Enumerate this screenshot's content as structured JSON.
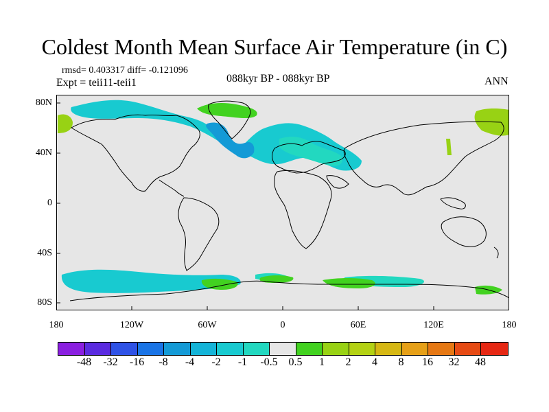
{
  "title": "Coldest Month Mean Surface Air Temperature (in C)",
  "stats": "rmsd= 0.403317 diff= -0.121096",
  "experiment": "Expt = teii11-teii1",
  "period": "088kyr BP - 088kyr BP",
  "season": "ANN",
  "lat_labels": [
    "80N",
    "40N",
    "0",
    "40S",
    "80S"
  ],
  "lon_labels": [
    "180",
    "120W",
    "60W",
    "0",
    "60E",
    "120E",
    "180"
  ],
  "colorbar": {
    "labels": [
      "-48",
      "-32",
      "-16",
      "-8",
      "-4",
      "-2",
      "-1",
      "-0.5",
      "0.5",
      "1",
      "2",
      "4",
      "8",
      "16",
      "32",
      "48"
    ],
    "colors": [
      "#8a1fe0",
      "#5a2be0",
      "#2f52e6",
      "#1a74e6",
      "#149ad6",
      "#14b4d8",
      "#18cad0",
      "#22d8c0",
      "#e6e6e6",
      "#42d220",
      "#98d214",
      "#b4d214",
      "#d6b814",
      "#e6a018",
      "#e67814",
      "#e64a14",
      "#e62814"
    ]
  },
  "colors": {
    "background": "#e6e6e6",
    "cool_light": "#22d8c0",
    "cool_mid": "#18cad0",
    "cool_strong": "#149ad6",
    "warm_light": "#42d220",
    "warm_mid": "#98d214",
    "coast": "#000000"
  }
}
